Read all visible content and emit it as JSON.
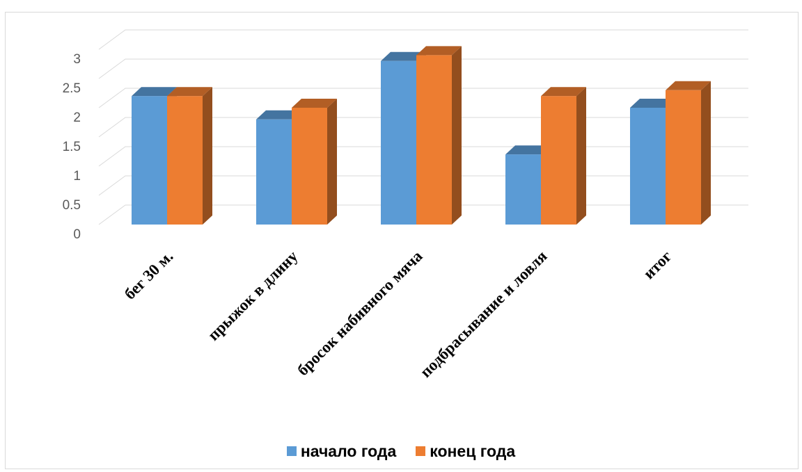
{
  "chart_data": {
    "type": "bar",
    "title": "",
    "xlabel": "",
    "ylabel": "",
    "categories": [
      "бег 30 м.",
      "прыжок в длину",
      "бросок набивного мяча",
      "подбрасывание и ловля",
      "итог"
    ],
    "series": [
      {
        "name": "начало года",
        "values": [
          2.2,
          1.8,
          2.8,
          1.2,
          2.0
        ],
        "color": "#5b9bd5"
      },
      {
        "name": "конец года",
        "values": [
          2.2,
          2.0,
          2.9,
          2.2,
          2.3
        ],
        "color": "#ed7d31"
      }
    ],
    "ylim": [
      0,
      3
    ],
    "yticks": [
      "0",
      "0.5",
      "1",
      "1.5",
      "2",
      "2.5",
      "3"
    ],
    "grid": true,
    "legend": "bottom",
    "style": "3d-column"
  }
}
